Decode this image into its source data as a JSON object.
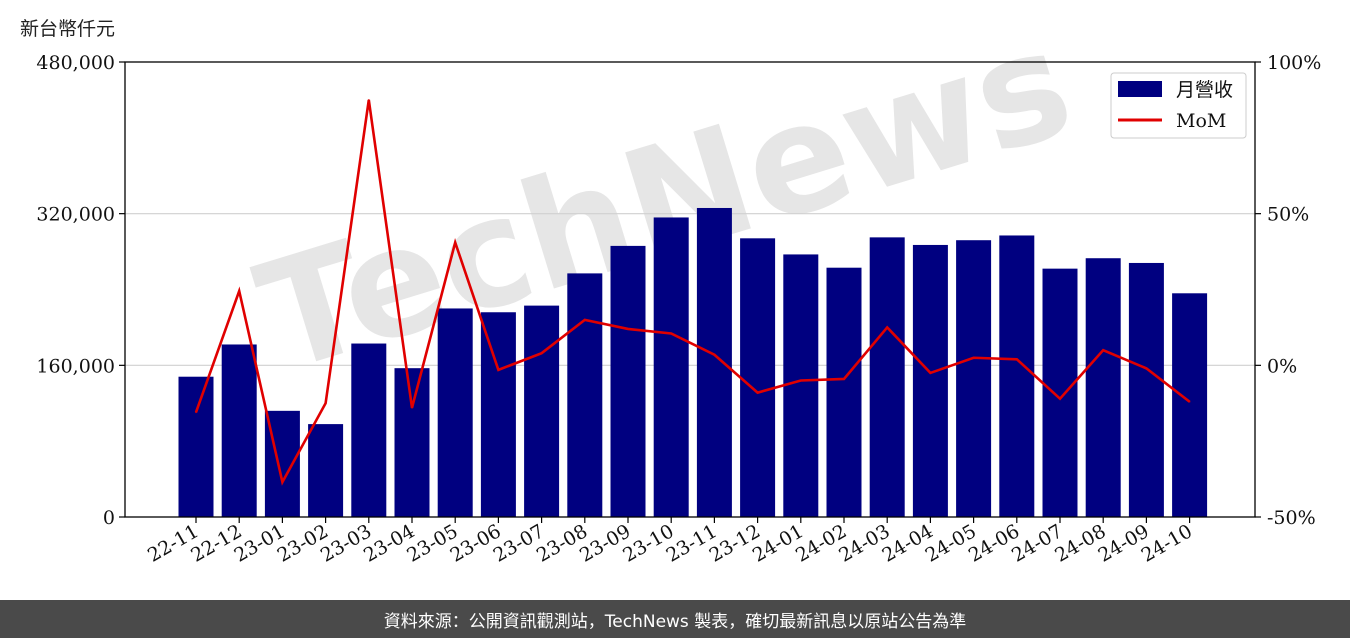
{
  "chart_data": {
    "type": "bar",
    "unit_label": "新台幣仟元",
    "categories": [
      "22-11",
      "22-12",
      "23-01",
      "23-02",
      "23-03",
      "23-04",
      "23-05",
      "23-06",
      "23-07",
      "23-08",
      "23-09",
      "23-10",
      "23-11",
      "23-12",
      "24-01",
      "24-02",
      "24-03",
      "24-04",
      "24-05",
      "24-06",
      "24-07",
      "24-08",
      "24-09",
      "24-10"
    ],
    "series": [
      {
        "name": "月營收",
        "type": "bar",
        "axis": "left",
        "color": "#000080",
        "values": [
          148000,
          182000,
          112000,
          98000,
          183000,
          157000,
          220000,
          216000,
          223000,
          257000,
          286000,
          316000,
          326000,
          294000,
          277000,
          263000,
          295000,
          287000,
          292000,
          297000,
          262000,
          273000,
          268000,
          236000
        ]
      },
      {
        "name": "MoM",
        "type": "line",
        "axis": "right",
        "color": "#e00000",
        "values": [
          -15.5,
          24.5,
          -38.5,
          -12.5,
          87.5,
          -14.0,
          40.5,
          -1.5,
          4.0,
          15.0,
          12.0,
          10.5,
          3.5,
          -9.0,
          -5.0,
          -4.5,
          12.5,
          -2.5,
          2.5,
          2.0,
          -11.0,
          5.0,
          -1.0,
          -12.0
        ]
      }
    ],
    "left_axis": {
      "ylim": [
        0,
        480000
      ],
      "ticks": [
        "0",
        "160,000",
        "320,000",
        "480,000"
      ],
      "tick_values": [
        0,
        160000,
        320000,
        480000
      ]
    },
    "right_axis": {
      "ylim": [
        -50,
        100
      ],
      "ticks": [
        "-50%",
        "0%",
        "50%",
        "100%"
      ],
      "tick_values": [
        -50,
        0,
        50,
        100
      ]
    },
    "grid": true,
    "legend_position": "top-right"
  },
  "watermark": "TechNews",
  "footer": "資料來源：公開資訊觀測站，TechNews 製表，確切最新訊息以原站公告為準"
}
